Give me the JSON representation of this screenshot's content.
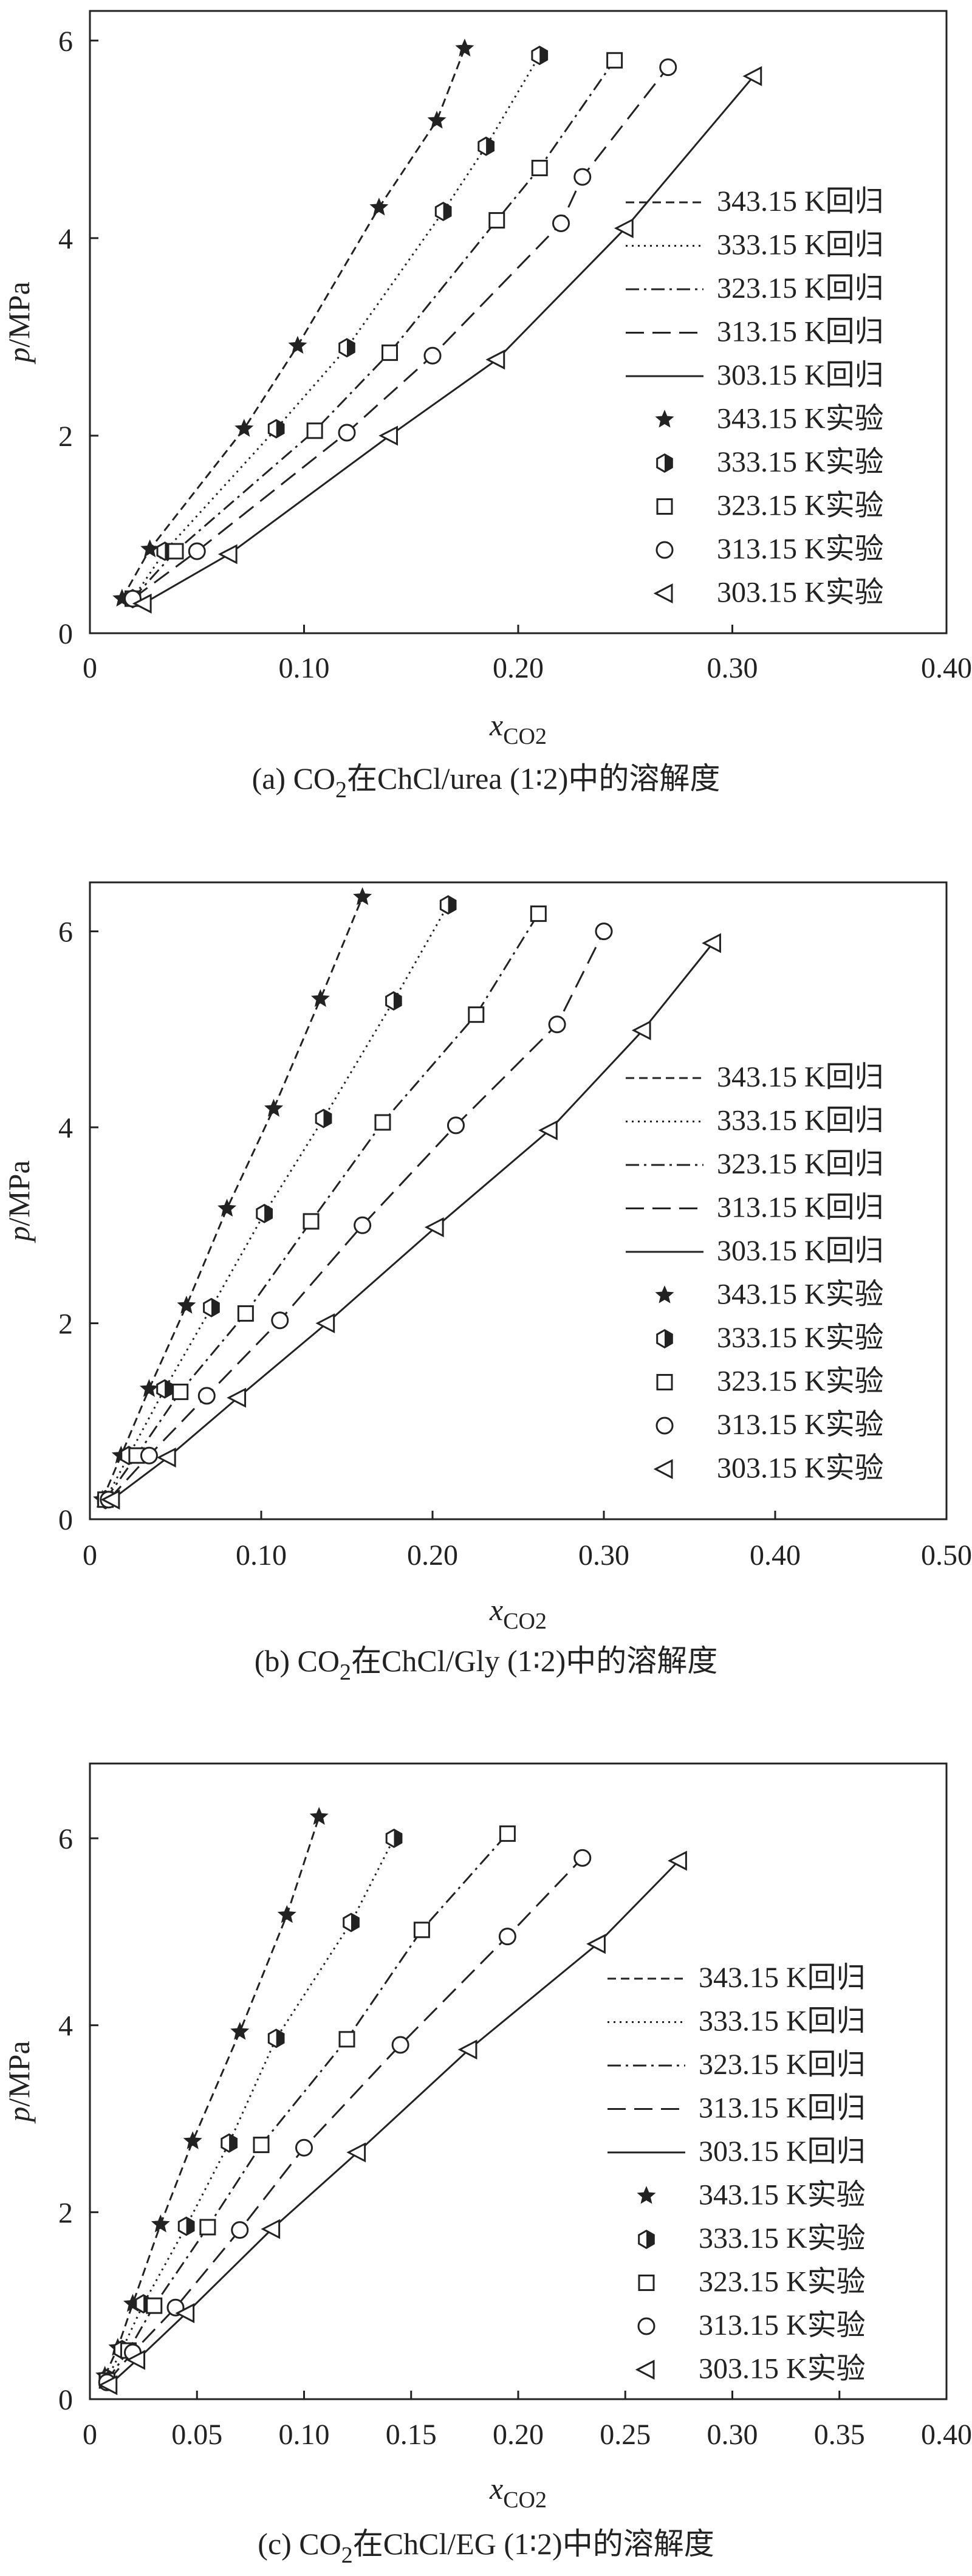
{
  "chart_data": [
    {
      "panel": "a",
      "type": "scatter",
      "caption": {
        "prefix": "(a) CO",
        "subscript": "2",
        "suffix": "在ChCl/urea (1∶2)中的溶解度"
      },
      "xlabel": {
        "main": "x",
        "sub": "CO2"
      },
      "ylabel": "p/MPa",
      "xlim": [
        0,
        0.4
      ],
      "ylim": [
        0,
        6.3
      ],
      "xticks": [
        "0",
        "0.10",
        "0.20",
        "0.30",
        "0.40"
      ],
      "yticks": [
        "0",
        "2",
        "4",
        "6"
      ],
      "legend_position": "right",
      "series": [
        {
          "name": "343.15 K",
          "line_style": "short-dash",
          "marker": "star",
          "x": [
            0.015,
            0.028,
            0.072,
            0.097,
            0.135,
            0.162,
            0.175
          ],
          "y": [
            0.35,
            0.85,
            2.07,
            2.91,
            4.31,
            5.19,
            5.92
          ]
        },
        {
          "name": "333.15 K",
          "line_style": "dotted",
          "marker": "hexagon",
          "x": [
            0.02,
            0.035,
            0.087,
            0.12,
            0.165,
            0.185,
            0.21
          ],
          "y": [
            0.35,
            0.83,
            2.07,
            2.89,
            4.27,
            4.93,
            5.85
          ]
        },
        {
          "name": "323.15 K",
          "line_style": "dash-dot",
          "marker": "square",
          "x": [
            0.02,
            0.04,
            0.105,
            0.14,
            0.19,
            0.21,
            0.245
          ],
          "y": [
            0.35,
            0.83,
            2.05,
            2.84,
            4.18,
            4.71,
            5.8
          ]
        },
        {
          "name": "313.15 K",
          "line_style": "long-dash",
          "marker": "circle",
          "x": [
            0.02,
            0.05,
            0.12,
            0.16,
            0.22,
            0.23,
            0.27
          ],
          "y": [
            0.35,
            0.83,
            2.03,
            2.81,
            4.15,
            4.62,
            5.73
          ]
        },
        {
          "name": "303.15 K",
          "line_style": "solid",
          "marker": "triangle-left",
          "x": [
            0.025,
            0.065,
            0.14,
            0.19,
            0.25,
            0.31
          ],
          "y": [
            0.3,
            0.8,
            2.0,
            2.77,
            4.1,
            5.64
          ]
        }
      ]
    },
    {
      "panel": "b",
      "type": "scatter",
      "caption": {
        "prefix": "(b) CO",
        "subscript": "2",
        "suffix": "在ChCl/Gly (1∶2)中的溶解度"
      },
      "xlabel": {
        "main": "x",
        "sub": "CO2"
      },
      "ylabel": "p/MPa",
      "xlim": [
        0,
        0.55
      ],
      "ylim": [
        0,
        6.5
      ],
      "xticks": [
        "0",
        "0.10",
        "0.20",
        "0.30",
        "0.40",
        "0.50"
      ],
      "yticks": [
        "0",
        "2",
        "4",
        "6"
      ],
      "legend_position": "right",
      "series": [
        {
          "name": "343.15 K",
          "line_style": "short-dash",
          "marker": "star",
          "x": [
            0.008,
            0.02,
            0.038,
            0.062,
            0.088,
            0.118,
            0.148,
            0.175
          ],
          "y": [
            0.2,
            0.65,
            1.33,
            2.18,
            3.17,
            4.19,
            5.31,
            6.35
          ]
        },
        {
          "name": "333.15 K",
          "line_style": "dotted",
          "marker": "hexagon",
          "x": [
            0.01,
            0.025,
            0.048,
            0.078,
            0.112,
            0.15,
            0.195,
            0.23
          ],
          "y": [
            0.2,
            0.65,
            1.33,
            2.16,
            3.12,
            4.09,
            5.29,
            6.27
          ]
        },
        {
          "name": "323.15 K",
          "line_style": "dash-dot",
          "marker": "square",
          "x": [
            0.01,
            0.03,
            0.058,
            0.1,
            0.142,
            0.188,
            0.248,
            0.288
          ],
          "y": [
            0.2,
            0.65,
            1.3,
            2.1,
            3.04,
            4.05,
            5.15,
            6.18
          ]
        },
        {
          "name": "313.15 K",
          "line_style": "long-dash",
          "marker": "circle",
          "x": [
            0.012,
            0.038,
            0.075,
            0.122,
            0.175,
            0.235,
            0.3,
            0.33
          ],
          "y": [
            0.2,
            0.65,
            1.26,
            2.03,
            3.0,
            4.02,
            5.05,
            6.0
          ]
        },
        {
          "name": "303.15 K",
          "line_style": "solid",
          "marker": "triangle-left",
          "x": [
            0.014,
            0.05,
            0.095,
            0.152,
            0.222,
            0.295,
            0.355,
            0.4
          ],
          "y": [
            0.2,
            0.63,
            1.24,
            2.0,
            2.98,
            3.97,
            4.99,
            5.88
          ]
        }
      ]
    },
    {
      "panel": "c",
      "type": "scatter",
      "caption": {
        "prefix": "(c) CO",
        "subscript": "2",
        "suffix": "在ChCl/EG (1∶2)中的溶解度"
      },
      "xlabel": {
        "main": "x",
        "sub": "CO2"
      },
      "ylabel": "p/MPa",
      "xlim": [
        0,
        0.4
      ],
      "ylim": [
        0,
        6.8
      ],
      "xticks": [
        "0",
        "0.05",
        "0.10",
        "0.15",
        "0.20",
        "0.25",
        "0.30",
        "0.35",
        "0.40"
      ],
      "yticks": [
        "0",
        "2",
        "4",
        "6"
      ],
      "legend_position": "right",
      "series": [
        {
          "name": "343.15 K",
          "line_style": "short-dash",
          "marker": "star",
          "x": [
            0.007,
            0.013,
            0.02,
            0.033,
            0.048,
            0.07,
            0.092,
            0.107
          ],
          "y": [
            0.25,
            0.55,
            1.02,
            1.87,
            2.76,
            3.93,
            5.18,
            6.23
          ]
        },
        {
          "name": "333.15 K",
          "line_style": "dotted",
          "marker": "hexagon",
          "x": [
            0.008,
            0.015,
            0.025,
            0.045,
            0.065,
            0.087,
            0.122,
            0.142
          ],
          "y": [
            0.22,
            0.53,
            1.02,
            1.85,
            2.74,
            3.86,
            5.1,
            6.0
          ]
        },
        {
          "name": "323.15 K",
          "line_style": "dash-dot",
          "marker": "square",
          "x": [
            0.008,
            0.018,
            0.03,
            0.055,
            0.08,
            0.12,
            0.155,
            0.195
          ],
          "y": [
            0.2,
            0.52,
            1.0,
            1.84,
            2.72,
            3.85,
            5.02,
            6.05
          ]
        },
        {
          "name": "313.15 K",
          "line_style": "long-dash",
          "marker": "circle",
          "x": [
            0.008,
            0.02,
            0.04,
            0.07,
            0.1,
            0.145,
            0.195,
            0.23
          ],
          "y": [
            0.18,
            0.5,
            0.98,
            1.81,
            2.69,
            3.79,
            4.95,
            5.79
          ]
        },
        {
          "name": "303.15 K",
          "line_style": "solid",
          "marker": "triangle-left",
          "x": [
            0.009,
            0.022,
            0.045,
            0.085,
            0.125,
            0.177,
            0.237,
            0.275
          ],
          "y": [
            0.15,
            0.42,
            0.92,
            1.82,
            2.64,
            3.74,
            4.87,
            5.76
          ]
        }
      ]
    }
  ],
  "legend_suffix": {
    "line": "回归",
    "marker": "实验"
  }
}
